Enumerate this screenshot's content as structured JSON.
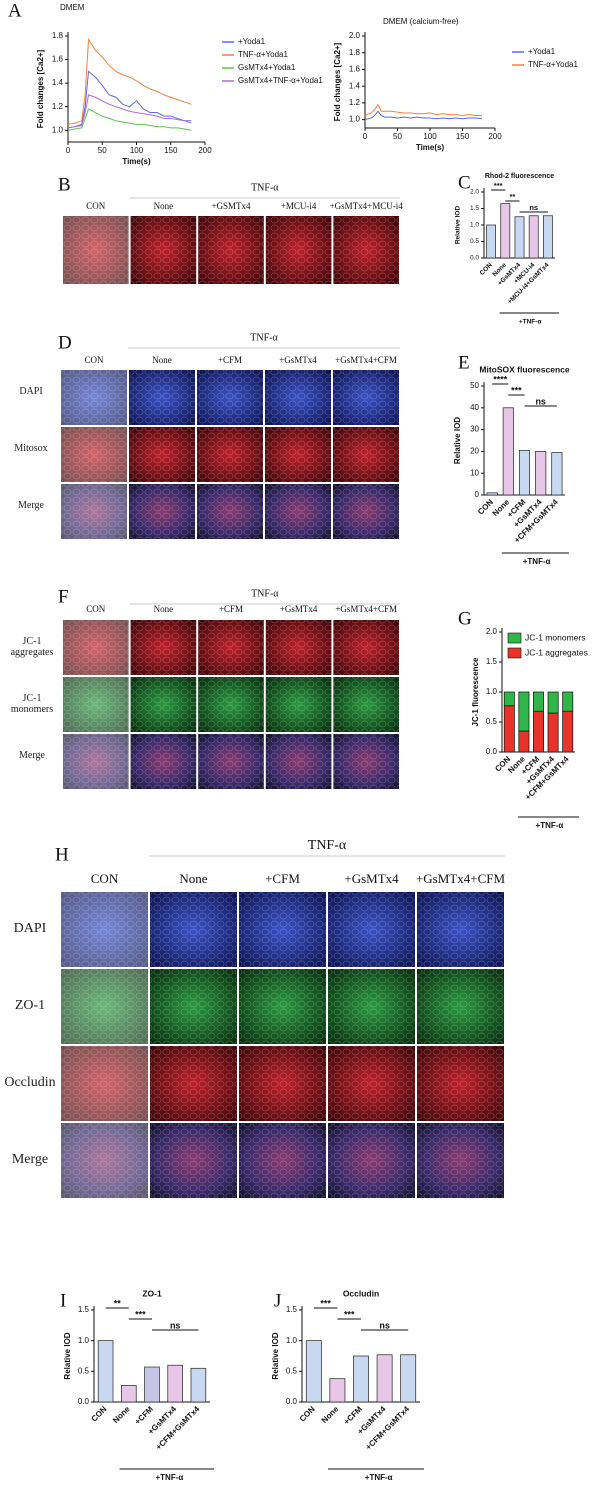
{
  "panel_labels": [
    "A",
    "B",
    "C",
    "D",
    "E",
    "F",
    "G",
    "H",
    "I",
    "J"
  ],
  "image_panels": [
    {
      "group_label": "TNF-α",
      "columns": [
        "CON",
        "None",
        "+GSMTx4",
        "+MCU-i4",
        "+GsMTx4+MCU-i4"
      ]
    },
    {
      "group_label": "TNF-α",
      "columns": [
        "CON",
        "None",
        "+CFM",
        "+GsMTx4",
        "+GsMTx4+CFM"
      ],
      "rows": [
        "DAPI",
        "Mitosox",
        "Merge"
      ]
    },
    {
      "group_label": "TNF-α",
      "columns": [
        "CON",
        "None",
        "+CFM",
        "+GsMTx4",
        "+GsMTx4+CFM"
      ],
      "rows": [
        "JC-1 aggregates",
        "JC-1 monomers",
        "Merge"
      ]
    },
    {
      "group_label": "TNF-α",
      "columns": [
        "CON",
        "None",
        "+CFM",
        "+GsMTx4",
        "+GsMTx4+CFM"
      ],
      "rows": [
        "DAPI",
        "ZO-1",
        "Occludin",
        "Merge"
      ]
    }
  ],
  "chart_data": [
    {
      "type": "line",
      "title": "DMEM",
      "x_label": "Time(s)",
      "y_label": "Fold changes [Ca2+]",
      "x": [
        0,
        10,
        20,
        25,
        30,
        40,
        50,
        60,
        70,
        80,
        90,
        100,
        110,
        120,
        130,
        140,
        150,
        160,
        170,
        180
      ],
      "xlim": [
        0,
        200
      ],
      "xticks": [
        0,
        50,
        100,
        150,
        200
      ],
      "ylim": [
        0.9,
        1.8
      ],
      "yticks": [
        {
          "value": 1,
          "label": "1.0"
        },
        1.2,
        1.4,
        1.6,
        1.8
      ],
      "series": [
        {
          "name": "+Yoda1",
          "color": "#5b6bd6",
          "values": [
            1.02,
            1.03,
            1.05,
            1.2,
            1.5,
            1.45,
            1.38,
            1.3,
            1.28,
            1.22,
            1.2,
            1.25,
            1.18,
            1.15,
            1.15,
            1.12,
            1.12,
            1.1,
            1.08,
            1.08
          ]
        },
        {
          "name": "TNF-α+Yoda1",
          "color": "#f08040",
          "values": [
            1.05,
            1.06,
            1.08,
            1.3,
            1.77,
            1.68,
            1.62,
            1.55,
            1.5,
            1.47,
            1.45,
            1.42,
            1.38,
            1.35,
            1.33,
            1.3,
            1.28,
            1.26,
            1.24,
            1.22
          ]
        },
        {
          "name": "GsMTx4+Yoda1",
          "color": "#5cc24a",
          "values": [
            1.0,
            1.01,
            1.02,
            1.1,
            1.18,
            1.15,
            1.12,
            1.1,
            1.08,
            1.07,
            1.06,
            1.05,
            1.05,
            1.04,
            1.03,
            1.03,
            1.02,
            1.02,
            1.01,
            1.0
          ]
        },
        {
          "name": "GsMTx4+TNF-α+Yoda1",
          "color": "#a86ad8",
          "values": [
            1.02,
            1.03,
            1.04,
            1.15,
            1.3,
            1.28,
            1.25,
            1.22,
            1.2,
            1.18,
            1.16,
            1.15,
            1.14,
            1.13,
            1.12,
            1.1,
            1.1,
            1.09,
            1.08,
            1.06
          ]
        }
      ]
    },
    {
      "type": "line",
      "title": "DMEM (calcium-free)",
      "x_label": "Time(s)",
      "y_label": "Fold changes [Ca2+]",
      "x": [
        0,
        10,
        15,
        20,
        25,
        30,
        40,
        50,
        60,
        70,
        80,
        90,
        100,
        110,
        120,
        130,
        140,
        150,
        160,
        170,
        180
      ],
      "xlim": [
        0,
        200
      ],
      "xticks": [
        0,
        50,
        100,
        150,
        200
      ],
      "ylim": [
        0.9,
        2.0
      ],
      "yticks": [
        {
          "value": 1,
          "label": "1.0"
        },
        1.2,
        1.4,
        1.6,
        1.8,
        {
          "value": 2,
          "label": "2.0"
        }
      ],
      "series": [
        {
          "name": "+Yoda1",
          "color": "#5b6bd6",
          "values": [
            1.0,
            1.02,
            1.05,
            1.1,
            1.05,
            1.03,
            1.03,
            1.02,
            1.03,
            1.02,
            1.03,
            1.02,
            1.02,
            1.01,
            1.02,
            1.01,
            1.02,
            1.01,
            1.02,
            1.02,
            1.01
          ]
        },
        {
          "name": "TNF-α+Yoda1",
          "color": "#f08040",
          "values": [
            1.05,
            1.08,
            1.12,
            1.18,
            1.1,
            1.1,
            1.1,
            1.09,
            1.08,
            1.08,
            1.07,
            1.07,
            1.08,
            1.06,
            1.07,
            1.06,
            1.06,
            1.05,
            1.06,
            1.05,
            1.05
          ]
        }
      ]
    },
    {
      "type": "bar",
      "title": "Rhod-2 fluorescence",
      "y_label": "Relative IOD",
      "categories": [
        "CON",
        "None",
        "+GsMTx4",
        "+MCU-i4",
        "+MCU-i4+GsMTx4"
      ],
      "values": [
        1.0,
        1.65,
        1.25,
        1.28,
        1.28
      ],
      "colors": [
        "#c8d8f0",
        "#e8c6e8",
        "#c8d8f0",
        "#e8c6e8",
        "#c8d8f0"
      ],
      "ylim": [
        0,
        2
      ],
      "yticks": [
        {
          "value": 0,
          "label": "0.0"
        },
        {
          "value": 0.5,
          "label": "0.5"
        },
        {
          "value": 1,
          "label": "1.0"
        },
        {
          "value": 1.5,
          "label": "1.5"
        },
        {
          "value": 2,
          "label": "2.0"
        }
      ],
      "annotations": [
        {
          "text": "***",
          "categories": [
            "CON",
            "None"
          ]
        },
        {
          "text": "**",
          "categories": [
            "None",
            "+GsMTx4"
          ]
        },
        {
          "text": "ns",
          "categories": [
            "+GsMTx4",
            "+MCU-i4+GsMTx4"
          ]
        }
      ],
      "group_label": "+TNF-α"
    },
    {
      "type": "bar",
      "title": "MitoSOX fluorescence",
      "y_label": "Relative IOD",
      "categories": [
        "CON",
        "None",
        "+CFM",
        "+GsMTx4",
        "+CFM+GsMTx4"
      ],
      "values": [
        1,
        40,
        20.5,
        20,
        19.5
      ],
      "colors": [
        "#c8d8f0",
        "#e8c6e8",
        "#c8d8f0",
        "#e8c6e8",
        "#c8d8f0"
      ],
      "ylim": [
        0,
        50
      ],
      "yticks": [
        0,
        10,
        20,
        30,
        40,
        50
      ],
      "annotations": [
        {
          "text": "****",
          "categories": [
            "CON",
            "None"
          ]
        },
        {
          "text": "***",
          "categories": [
            "None",
            "+CFM"
          ]
        },
        {
          "text": "ns",
          "categories": [
            "+CFM",
            "+CFM+GsMTx4"
          ]
        }
      ],
      "group_label": "+TNF-α"
    },
    {
      "type": "stacked_bar",
      "y_label": "JC-1 fluorescence",
      "categories": [
        "CON",
        "None",
        "+CFM",
        "+GsMTx4",
        "+CFM+GsMTx4"
      ],
      "series": [
        {
          "name": "JC-1 aggregates",
          "color": "#e8322a",
          "values": [
            0.77,
            0.35,
            0.68,
            0.65,
            0.68
          ]
        },
        {
          "name": "JC-1 monomers",
          "color": "#2fb548",
          "values": [
            0.23,
            0.65,
            0.32,
            0.35,
            0.32
          ]
        }
      ],
      "ylim": [
        0,
        2
      ],
      "yticks": [
        {
          "value": 0,
          "label": "0.0"
        },
        {
          "value": 0.5,
          "label": "0.5"
        },
        {
          "value": 1,
          "label": "1.0"
        },
        {
          "value": 1.5,
          "label": "1.5"
        },
        {
          "value": 2,
          "label": "2.0"
        }
      ],
      "group_label": "+TNF-α"
    },
    {
      "type": "bar",
      "title": "ZO-1",
      "y_label": "Relative IOD",
      "categories": [
        "CON",
        "None",
        "+CFM",
        "+GsMTx4",
        "+CFM+GsMTx4"
      ],
      "values": [
        1.0,
        0.27,
        0.57,
        0.6,
        0.55
      ],
      "colors": [
        "#c8d8f0",
        "#e8c6e8",
        "#c8c4e8",
        "#e8c6e8",
        "#c8d8f0"
      ],
      "ylim": [
        0,
        1.5
      ],
      "yticks": [
        {
          "value": 0,
          "label": "0.0"
        },
        {
          "value": 0.5,
          "label": "0.5"
        },
        {
          "value": 1,
          "label": "1.0"
        },
        1.5
      ],
      "annotations": [
        {
          "text": "**",
          "categories": [
            "CON",
            "None"
          ]
        },
        {
          "text": "***",
          "categories": [
            "None",
            "+CFM"
          ]
        },
        {
          "text": "ns",
          "categories": [
            "+CFM",
            "+CFM+GsMTx4"
          ]
        }
      ],
      "group_label": "+TNF-α"
    },
    {
      "type": "bar",
      "title": "Occludin",
      "y_label": "Relative IOD",
      "categories": [
        "CON",
        "None",
        "+CFM",
        "+GsMTx4",
        "+CFM+GsMTx4"
      ],
      "values": [
        1.0,
        0.38,
        0.75,
        0.77,
        0.77
      ],
      "colors": [
        "#c8d8f0",
        "#e8c6e8",
        "#c8d8f0",
        "#e8c6e8",
        "#c8d8f0"
      ],
      "ylim": [
        0,
        1.5
      ],
      "yticks": [
        {
          "value": 0,
          "label": "0.0"
        },
        {
          "value": 0.5,
          "label": "0.5"
        },
        {
          "value": 1,
          "label": "1.0"
        },
        1.5
      ],
      "annotations": [
        {
          "text": "***",
          "categories": [
            "CON",
            "None"
          ]
        },
        {
          "text": "***",
          "categories": [
            "None",
            "+CFM"
          ]
        },
        {
          "text": "ns",
          "categories": [
            "+CFM",
            "+CFM+GsMTx4"
          ]
        }
      ],
      "group_label": "+TNF-α"
    }
  ]
}
